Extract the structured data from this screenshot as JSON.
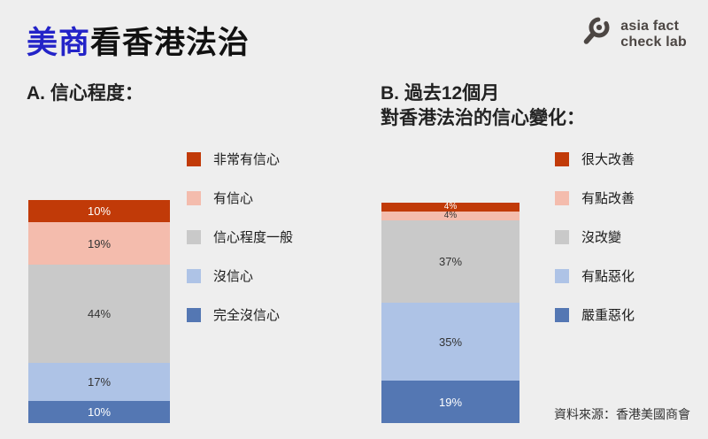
{
  "header": {
    "title_highlight": "美商",
    "title_rest": "看香港法治",
    "logo": {
      "icon": "magnifier-icon",
      "line1": "asia fact",
      "line2": "check lab"
    }
  },
  "source": "資料來源：香港美國商會",
  "colors": {
    "background": "#eeeeee",
    "title_highlight": "#2323c8",
    "logo": "#4c4643",
    "palette": [
      "#c13a08",
      "#f4bcad",
      "#c9c9c9",
      "#aec3e6",
      "#5477b3"
    ]
  },
  "chart_data": [
    {
      "type": "bar",
      "subtype": "stacked-column",
      "title": "A. 信心程度：",
      "categories": [
        "非常有信心",
        "有信心",
        "信心程度一般",
        "沒信心",
        "完全沒信心"
      ],
      "values": [
        10,
        19,
        44,
        17,
        10
      ],
      "labels": [
        "10%",
        "19%",
        "44%",
        "17%",
        "10%"
      ],
      "unit": "%",
      "colors": [
        "#c13a08",
        "#f4bcad",
        "#c9c9c9",
        "#aec3e6",
        "#5477b3"
      ],
      "label_colors": [
        "#ffffff",
        "#333333",
        "#333333",
        "#333333",
        "#ffffff"
      ],
      "legend_position": "right",
      "axis": "none"
    },
    {
      "type": "bar",
      "subtype": "stacked-column",
      "title": "B. 過去12個月\n對香港法治的信心變化：",
      "categories": [
        "很大改善",
        "有點改善",
        "沒改變",
        "有點惡化",
        "嚴重惡化"
      ],
      "values": [
        4,
        4,
        37,
        35,
        19
      ],
      "labels": [
        "4%",
        "4%",
        "37%",
        "35%",
        "19%"
      ],
      "unit": "%",
      "colors": [
        "#c13a08",
        "#f4bcad",
        "#c9c9c9",
        "#aec3e6",
        "#5477b3"
      ],
      "label_colors": [
        "#ffffff",
        "#333333",
        "#333333",
        "#333333",
        "#ffffff"
      ],
      "legend_position": "right",
      "axis": "none"
    }
  ]
}
